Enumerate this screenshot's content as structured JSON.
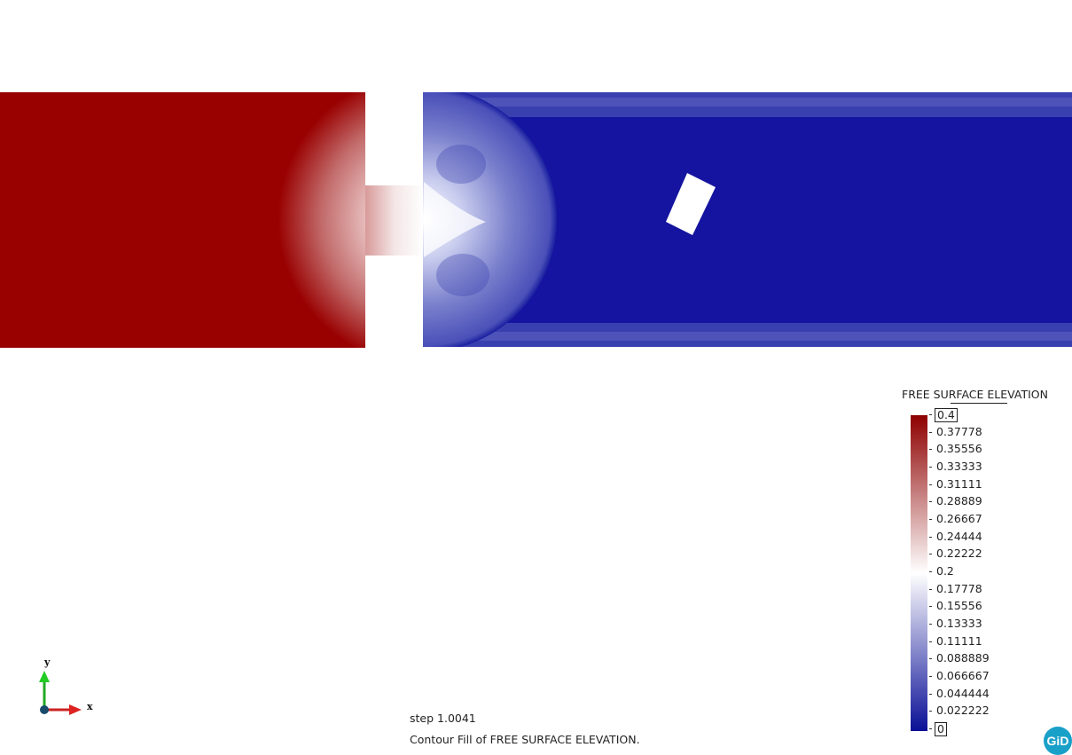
{
  "legend": {
    "title": "FREE SURFACE ELEVATION",
    "labels": [
      "0.4",
      "0.37778",
      "0.35556",
      "0.33333",
      "0.31111",
      "0.28889",
      "0.26667",
      "0.24444",
      "0.22222",
      "0.2",
      "0.17778",
      "0.15556",
      "0.13333",
      "0.11111",
      "0.088889",
      "0.066667",
      "0.044444",
      "0.022222",
      "0"
    ],
    "max_color": "#8e0000",
    "mid_color": "#ffffff",
    "min_color": "#0a0f96"
  },
  "status": {
    "step": "step 1.0041",
    "caption": "Contour Fill of FREE SURFACE ELEVATION."
  },
  "axes": {
    "x_label": "x",
    "y_label": "y"
  },
  "logo": {
    "text": "GiD"
  },
  "colors": {
    "reservoir": "#990000",
    "channel": "#1414a0",
    "channel_edge": "#3a3fb0"
  }
}
